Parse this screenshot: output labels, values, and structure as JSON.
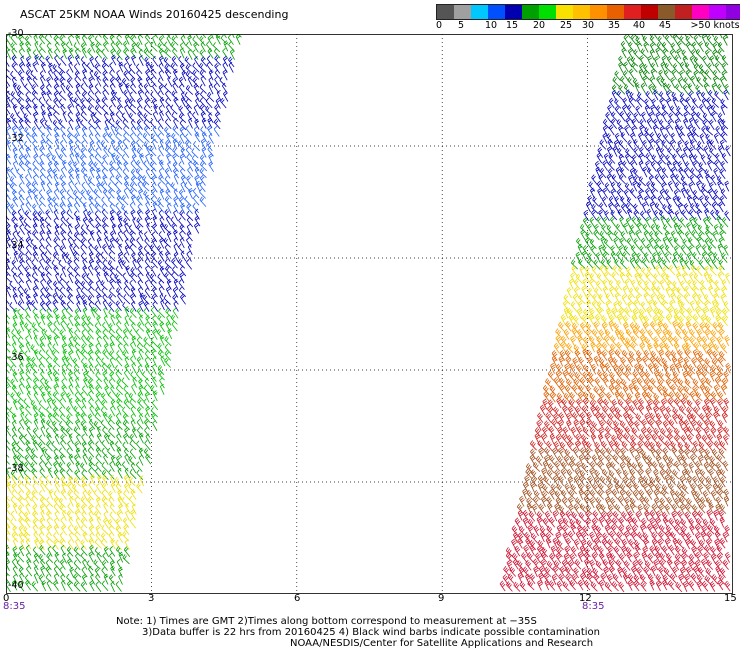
{
  "title": "ASCAT 25KM NOAA Winds 20160425 descending",
  "legend": {
    "colors": [
      "#555555",
      "#a0a0a0",
      "#00c8ff",
      "#0050ff",
      "#0000b0",
      "#00a000",
      "#00e000",
      "#f8e000",
      "#ffc000",
      "#ff9000",
      "#e86000",
      "#e02020",
      "#c00000",
      "#8b5a2b",
      "#c02020",
      "#ff00c0",
      "#c000ff",
      "#9000e0",
      "#600090"
    ],
    "ticks": [
      "0",
      "5",
      "10",
      "15",
      "20",
      "25",
      "30",
      "35",
      "40",
      "45",
      ">50 knots"
    ]
  },
  "map": {
    "lat_labels": [
      "-30",
      "-32",
      "-34",
      "-36",
      "-38",
      "-40"
    ],
    "lon_labels": [
      "0",
      "3",
      "6",
      "9",
      "12",
      "15"
    ],
    "time_labels": [
      "8:35",
      "8:35"
    ],
    "swaths": [
      {
        "name": "west-swath",
        "lon_range": [
          0,
          5
        ],
        "lat_range": [
          -30,
          -40
        ],
        "speed_bands": [
          {
            "lat": [
              -30,
              -30.5
            ],
            "color": "#00a000"
          },
          {
            "lat": [
              -30.5,
              -31.8
            ],
            "color": "#0000c0"
          },
          {
            "lat": [
              -31.8,
              -33.2
            ],
            "color": "#2060ff"
          },
          {
            "lat": [
              -33.2,
              -35.0
            ],
            "color": "#0000c0"
          },
          {
            "lat": [
              -35.0,
              -37.0
            ],
            "color": "#00c000"
          },
          {
            "lat": [
              -37.0,
              -38.0
            ],
            "color": "#00a000"
          },
          {
            "lat": [
              -38.0,
              -39.2
            ],
            "color": "#f0e000"
          },
          {
            "lat": [
              -39.2,
              -40.0
            ],
            "color": "#00a000"
          }
        ]
      },
      {
        "name": "east-swath",
        "lon_range": [
          10.5,
          15
        ],
        "lat_range": [
          -30,
          -40
        ],
        "speed_bands": [
          {
            "lat": [
              -30,
              -31.1
            ],
            "color": "#008000"
          },
          {
            "lat": [
              -31.1,
              -33.4
            ],
            "color": "#0000c0"
          },
          {
            "lat": [
              -33.4,
              -34.2
            ],
            "color": "#00a000"
          },
          {
            "lat": [
              -34.2,
              -35.2
            ],
            "color": "#f0e000"
          },
          {
            "lat": [
              -35.2,
              -35.8
            ],
            "color": "#ffa000"
          },
          {
            "lat": [
              -35.8,
              -36.6
            ],
            "color": "#e06000"
          },
          {
            "lat": [
              -36.6,
              -37.5
            ],
            "color": "#d02020"
          },
          {
            "lat": [
              -37.5,
              -38.6
            ],
            "color": "#a05020"
          },
          {
            "lat": [
              -38.6,
              -40.0
            ],
            "color": "#d01030"
          }
        ]
      }
    ]
  },
  "notes": [
    "Note: 1) Times are GMT 2)Times along bottom correspond to measurement at −35S",
    "3)Data buffer is 22 hrs from 20160425 4) Black wind barbs indicate possible contamination",
    "NOAA/NESDIS/Center for Satellite Applications and Research"
  ]
}
